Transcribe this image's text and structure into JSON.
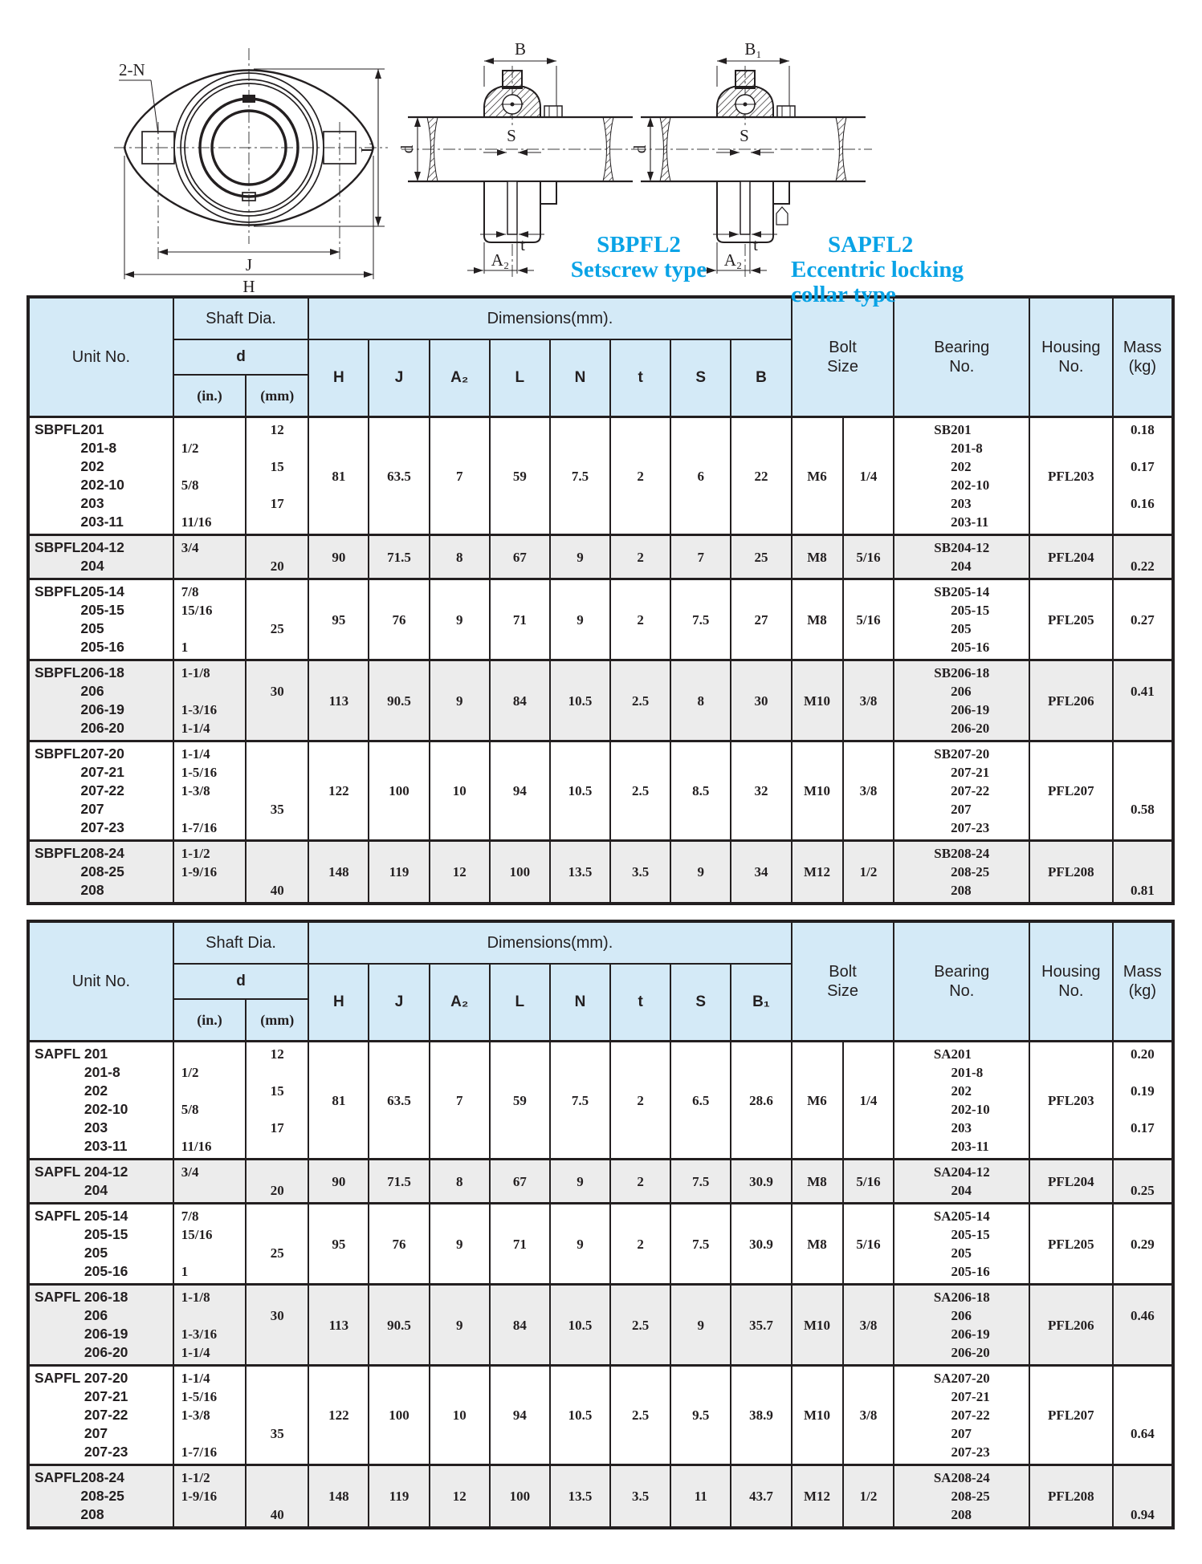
{
  "colors": {
    "header_bg": "#d4eaf7",
    "alt_row_bg": "#ececec",
    "border": "#231f20",
    "caption_cyan": "#0aa3e6",
    "text": "#231f20"
  },
  "drawings": {
    "front_view": {
      "bolt_holes_label": "2-N",
      "dim_j": "J",
      "dim_h": "H",
      "dim_l": "L"
    },
    "setscrew_section": {
      "dim_b": "B",
      "dim_d": "d",
      "dim_s": "S",
      "dim_t": "t",
      "dim_a2": "A₂"
    },
    "eccentric_section": {
      "dim_b1": "B₁",
      "dim_d": "d",
      "dim_s": "S",
      "dim_t": "t",
      "dim_a2": "A₂"
    },
    "captions": {
      "sbpfl": {
        "line1": "SBPFL2",
        "line2": "Setscrew type"
      },
      "sapfl": {
        "line1": "SAPFL2",
        "line2": "Eccentric locking",
        "line3": "collar type"
      }
    }
  },
  "tables": [
    {
      "name": "sbpfl2-table",
      "header": {
        "unit_no": "Unit No.",
        "shaft_dia": "Shaft Dia.",
        "d": "d",
        "in": "(in.)",
        "mm": "(mm)",
        "dimensions": "Dimensions(mm).",
        "dim_cols": [
          "H",
          "J",
          "A₂",
          "L",
          "N",
          "t",
          "S",
          "B"
        ],
        "bolt_size": "Bolt\nSize",
        "bearing_no": "Bearing\nNo.",
        "housing_no": "Housing\nNo.",
        "mass": "Mass\n(kg)"
      },
      "rows": [
        {
          "shaded": false,
          "unit_prefix": "SBPFL",
          "unit_nums": [
            "201",
            "201-8",
            "202",
            "202-10",
            "203",
            "203-11"
          ],
          "shaft_in": [
            "",
            "1/2",
            "",
            "5/8",
            "",
            "11/16"
          ],
          "shaft_mm": [
            "12",
            "",
            "15",
            "",
            "17",
            ""
          ],
          "dims": {
            "H": "81",
            "J": "63.5",
            "A2": "7",
            "L": "59",
            "N": "7.5",
            "t": "2",
            "S": "6",
            "B": "22"
          },
          "bolt_metric": "M6",
          "bolt_inch": "1/4",
          "bearing_prefix": "SB",
          "bearing_nums": [
            "201",
            "201-8",
            "202",
            "202-10",
            "203",
            "203-11"
          ],
          "housing": "PFL203",
          "mass": [
            "0.18",
            "",
            "0.17",
            "",
            "0.16",
            ""
          ]
        },
        {
          "shaded": true,
          "unit_prefix": "SBPFL",
          "unit_nums": [
            "204-12",
            "204"
          ],
          "shaft_in": [
            "3/4",
            ""
          ],
          "shaft_mm": [
            "",
            "20"
          ],
          "dims": {
            "H": "90",
            "J": "71.5",
            "A2": "8",
            "L": "67",
            "N": "9",
            "t": "2",
            "S": "7",
            "B": "25"
          },
          "bolt_metric": "M8",
          "bolt_inch": "5/16",
          "bearing_prefix": "SB",
          "bearing_nums": [
            "204-12",
            "204"
          ],
          "housing": "PFL204",
          "mass": [
            "",
            "0.22"
          ]
        },
        {
          "shaded": false,
          "unit_prefix": "SBPFL",
          "unit_nums": [
            "205-14",
            "205-15",
            "205",
            "205-16"
          ],
          "shaft_in": [
            "7/8",
            "15/16",
            "",
            "1"
          ],
          "shaft_mm": [
            "",
            "",
            "25",
            ""
          ],
          "dims": {
            "H": "95",
            "J": "76",
            "A2": "9",
            "L": "71",
            "N": "9",
            "t": "2",
            "S": "7.5",
            "B": "27"
          },
          "bolt_metric": "M8",
          "bolt_inch": "5/16",
          "bearing_prefix": "SB",
          "bearing_nums": [
            "205-14",
            "205-15",
            "205",
            "205-16"
          ],
          "housing": "PFL205",
          "mass": "0.27"
        },
        {
          "shaded": true,
          "unit_prefix": "SBPFL",
          "unit_nums": [
            "206-18",
            "206",
            "206-19",
            "206-20"
          ],
          "shaft_in": [
            "1-1/8",
            "",
            "1-3/16",
            "1-1/4"
          ],
          "shaft_mm": [
            "",
            "30",
            "",
            ""
          ],
          "dims": {
            "H": "113",
            "J": "90.5",
            "A2": "9",
            "L": "84",
            "N": "10.5",
            "t": "2.5",
            "S": "8",
            "B": "30"
          },
          "bolt_metric": "M10",
          "bolt_inch": "3/8",
          "bearing_prefix": "SB",
          "bearing_nums": [
            "206-18",
            "206",
            "206-19",
            "206-20"
          ],
          "housing": "PFL206",
          "mass": [
            "",
            "0.41",
            "",
            ""
          ]
        },
        {
          "shaded": false,
          "unit_prefix": "SBPFL",
          "unit_nums": [
            "207-20",
            "207-21",
            "207-22",
            "207",
            "207-23"
          ],
          "shaft_in": [
            "1-1/4",
            "1-5/16",
            "1-3/8",
            "",
            "1-7/16"
          ],
          "shaft_mm": [
            "",
            "",
            "",
            "35",
            ""
          ],
          "dims": {
            "H": "122",
            "J": "100",
            "A2": "10",
            "L": "94",
            "N": "10.5",
            "t": "2.5",
            "S": "8.5",
            "B": "32"
          },
          "bolt_metric": "M10",
          "bolt_inch": "3/8",
          "bearing_prefix": "SB",
          "bearing_nums": [
            "207-20",
            "207-21",
            "207-22",
            "207",
            "207-23"
          ],
          "housing": "PFL207",
          "mass": [
            "",
            "",
            "",
            "0.58",
            ""
          ]
        },
        {
          "shaded": true,
          "unit_prefix": "SBPFL",
          "unit_nums": [
            "208-24",
            "208-25",
            "208"
          ],
          "shaft_in": [
            "1-1/2",
            "1-9/16",
            ""
          ],
          "shaft_mm": [
            "",
            "",
            "40"
          ],
          "dims": {
            "H": "148",
            "J": "119",
            "A2": "12",
            "L": "100",
            "N": "13.5",
            "t": "3.5",
            "S": "9",
            "B": "34"
          },
          "bolt_metric": "M12",
          "bolt_inch": "1/2",
          "bearing_prefix": "SB",
          "bearing_nums": [
            "208-24",
            "208-25",
            "208"
          ],
          "housing": "PFL208",
          "mass": [
            "",
            "",
            "0.81"
          ]
        }
      ]
    },
    {
      "name": "sapfl2-table",
      "header": {
        "unit_no": "Unit No.",
        "shaft_dia": "Shaft Dia.",
        "d": "d",
        "in": "(in.)",
        "mm": "(mm)",
        "dimensions": "Dimensions(mm).",
        "dim_cols": [
          "H",
          "J",
          "A₂",
          "L",
          "N",
          "t",
          "S",
          "B₁"
        ],
        "bolt_size": "Bolt\nSize",
        "bearing_no": "Bearing\nNo.",
        "housing_no": "Housing\nNo.",
        "mass": "Mass\n(kg)"
      },
      "rows": [
        {
          "shaded": false,
          "unit_prefix": "SAPFL ",
          "unit_nums": [
            "201",
            "201-8",
            "202",
            "202-10",
            "203",
            "203-11"
          ],
          "shaft_in": [
            "",
            "1/2",
            "",
            "5/8",
            "",
            "11/16"
          ],
          "shaft_mm": [
            "12",
            "",
            "15",
            "",
            "17",
            ""
          ],
          "dims": {
            "H": "81",
            "J": "63.5",
            "A2": "7",
            "L": "59",
            "N": "7.5",
            "t": "2",
            "S": "6.5",
            "B": "28.6"
          },
          "bolt_metric": "M6",
          "bolt_inch": "1/4",
          "bearing_prefix": "SA",
          "bearing_nums": [
            "201",
            "201-8",
            "202",
            "202-10",
            "203",
            "203-11"
          ],
          "housing": "PFL203",
          "mass": [
            "0.20",
            "",
            "0.19",
            "",
            "0.17",
            ""
          ]
        },
        {
          "shaded": true,
          "unit_prefix": "SAPFL ",
          "unit_nums": [
            "204-12",
            "204"
          ],
          "shaft_in": [
            "3/4",
            ""
          ],
          "shaft_mm": [
            "",
            "20"
          ],
          "dims": {
            "H": "90",
            "J": "71.5",
            "A2": "8",
            "L": "67",
            "N": "9",
            "t": "2",
            "S": "7.5",
            "B": "30.9"
          },
          "bolt_metric": "M8",
          "bolt_inch": "5/16",
          "bearing_prefix": "SA",
          "bearing_nums": [
            "204-12",
            "204"
          ],
          "housing": "PFL204",
          "mass": [
            "",
            "0.25"
          ]
        },
        {
          "shaded": false,
          "unit_prefix": "SAPFL ",
          "unit_nums": [
            "205-14",
            "205-15",
            "205",
            "205-16"
          ],
          "shaft_in": [
            "7/8",
            "15/16",
            "",
            "1"
          ],
          "shaft_mm": [
            "",
            "",
            "25",
            ""
          ],
          "dims": {
            "H": "95",
            "J": "76",
            "A2": "9",
            "L": "71",
            "N": "9",
            "t": "2",
            "S": "7.5",
            "B": "30.9"
          },
          "bolt_metric": "M8",
          "bolt_inch": "5/16",
          "bearing_prefix": "SA",
          "bearing_nums": [
            "205-14",
            "205-15",
            "205",
            "205-16"
          ],
          "housing": "PFL205",
          "mass": "0.29"
        },
        {
          "shaded": true,
          "unit_prefix": "SAPFL ",
          "unit_nums": [
            "206-18",
            "206",
            "206-19",
            "206-20"
          ],
          "shaft_in": [
            "1-1/8",
            "",
            "1-3/16",
            "1-1/4"
          ],
          "shaft_mm": [
            "",
            "30",
            "",
            ""
          ],
          "dims": {
            "H": "113",
            "J": "90.5",
            "A2": "9",
            "L": "84",
            "N": "10.5",
            "t": "2.5",
            "S": "9",
            "B": "35.7"
          },
          "bolt_metric": "M10",
          "bolt_inch": "3/8",
          "bearing_prefix": "SA",
          "bearing_nums": [
            "206-18",
            "206",
            "206-19",
            "206-20"
          ],
          "housing": "PFL206",
          "mass": [
            "",
            "0.46",
            "",
            ""
          ]
        },
        {
          "shaded": false,
          "unit_prefix": "SAPFL ",
          "unit_nums": [
            "207-20",
            "207-21",
            "207-22",
            "207",
            "207-23"
          ],
          "shaft_in": [
            "1-1/4",
            "1-5/16",
            "1-3/8",
            "",
            "1-7/16"
          ],
          "shaft_mm": [
            "",
            "",
            "",
            "35",
            ""
          ],
          "dims": {
            "H": "122",
            "J": "100",
            "A2": "10",
            "L": "94",
            "N": "10.5",
            "t": "2.5",
            "S": "9.5",
            "B": "38.9"
          },
          "bolt_metric": "M10",
          "bolt_inch": "3/8",
          "bearing_prefix": "SA",
          "bearing_nums": [
            "207-20",
            "207-21",
            "207-22",
            "207",
            "207-23"
          ],
          "housing": "PFL207",
          "mass": [
            "",
            "",
            "",
            "0.64",
            ""
          ]
        },
        {
          "shaded": true,
          "unit_prefix": "SAPFL",
          "unit_nums": [
            "208-24",
            "208-25",
            "208"
          ],
          "shaft_in": [
            "1-1/2",
            "1-9/16",
            ""
          ],
          "shaft_mm": [
            "",
            "",
            "40"
          ],
          "dims": {
            "H": "148",
            "J": "119",
            "A2": "12",
            "L": "100",
            "N": "13.5",
            "t": "3.5",
            "S": "11",
            "B": "43.7"
          },
          "bolt_metric": "M12",
          "bolt_inch": "1/2",
          "bearing_prefix": "SA",
          "bearing_nums": [
            "208-24",
            "208-25",
            "208"
          ],
          "housing": "PFL208",
          "mass": [
            "",
            "",
            "0.94"
          ]
        }
      ]
    }
  ]
}
